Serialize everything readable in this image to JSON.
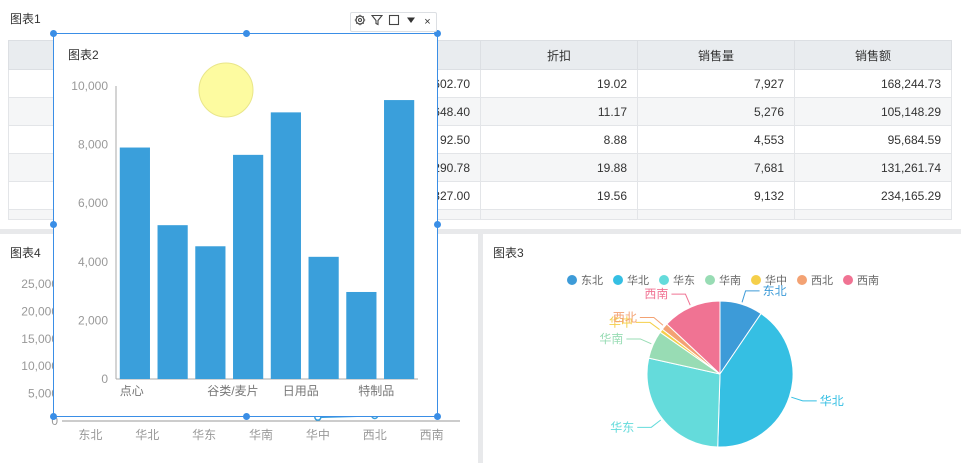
{
  "panel1": {
    "title": "图表1",
    "headers": [
      "",
      "",
      "",
      "折扣",
      "销售量",
      "销售额"
    ],
    "rows": [
      [
        "",
        "",
        "602.70",
        "19.02",
        "7,927",
        "168,244.73"
      ],
      [
        "",
        "",
        "648.40",
        "11.17",
        "5,276",
        "105,148.29"
      ],
      [
        "",
        "",
        "92.50",
        "8.88",
        "4,553",
        "95,684.59"
      ],
      [
        "",
        "",
        "290.78",
        "19.88",
        "7,681",
        "131,261.74"
      ],
      [
        "",
        "",
        "327.00",
        "19.56",
        "9,132",
        "234,165.29"
      ]
    ]
  },
  "panel4": {
    "title": "图表4",
    "chart_data": {
      "type": "line",
      "categories": [
        "东北",
        "华北",
        "华东",
        "华南",
        "华中",
        "西北",
        "西南"
      ],
      "y_ticks": [
        "0",
        "5,000",
        "10,000",
        "15,000",
        "20,000",
        "25,000"
      ],
      "ylim": [
        0,
        25000
      ],
      "values": [
        null,
        null,
        null,
        null,
        700,
        1000,
        null
      ]
    }
  },
  "panel3": {
    "title": "图表3",
    "chart_data": {
      "type": "pie",
      "labels": [
        "东北",
        "华北",
        "华东",
        "华南",
        "华中",
        "西北",
        "西南"
      ],
      "values": [
        9.5,
        41,
        28,
        6.2,
        0.8,
        1.5,
        13
      ],
      "colors": [
        "#3d9bd8",
        "#35bfe3",
        "#64dbdb",
        "#98dcb4",
        "#f5cf4a",
        "#f3a273",
        "#f07393"
      ]
    }
  },
  "panel2": {
    "title": "图表2",
    "toolbar": [
      "settings-icon",
      "filter-icon",
      "maximize-icon",
      "menu-icon",
      "close-icon"
    ],
    "chart_data": {
      "type": "bar",
      "categories": [
        "点心",
        "",
        "谷类/麦片",
        "",
        "日用品",
        "",
        "特制品",
        ""
      ],
      "values": [
        7900,
        5250,
        4530,
        7650,
        9100,
        4170,
        2970,
        9520
      ],
      "ylim": [
        0,
        10000
      ],
      "y_ticks": [
        "0",
        "2,000",
        "4,000",
        "6,000",
        "8,000",
        "10,000"
      ],
      "color": "#3a9fdb"
    }
  }
}
